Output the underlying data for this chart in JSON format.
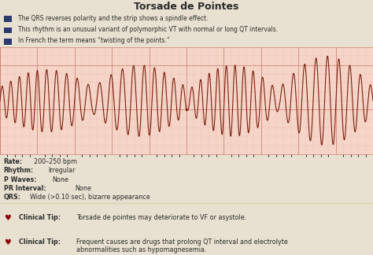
{
  "title": "Torsade de Pointes",
  "title_bg": "#c8956a",
  "title_color": "#2c2c2c",
  "bullet_bg": "#e8e0d0",
  "bullet_color": "#2c2c2c",
  "bullet_square_color": "#2c3a6e",
  "bullets": [
    "The QRS reverses polarity and the strip shows a spindle effect.",
    "This rhythm is an unusual variant of polymorphic VT with normal or long QT intervals.",
    "In French the term means “twisting of the points.”"
  ],
  "ecg_bg": "#f5d5c8",
  "ecg_grid_major_color": "#d08070",
  "ecg_grid_minor_color": "#e8b8a8",
  "ecg_line_color": "#7a2010",
  "stats_bg": "#f0ece0",
  "stats_color": "#2c2c2c",
  "stats_lines": [
    [
      "Rate:",
      "200–250 bpm"
    ],
    [
      "Rhythm:",
      "Irregular"
    ],
    [
      "P Waves:",
      "None"
    ],
    [
      "PR Interval:",
      "None"
    ],
    [
      "QRS:",
      "Wide (>0.10 sec), bizarre appearance"
    ]
  ],
  "clinical_bg": "#fdfce8",
  "clinical_color": "#2c2c2c",
  "clinical_heart_color": "#8b0000",
  "clinical_tips": [
    "Torsade de pointes may deteriorate to VF or asystole.",
    "Frequent causes are drugs that prolong QT interval and electrolyte\nabnormalities such as hypomagnesemia."
  ]
}
